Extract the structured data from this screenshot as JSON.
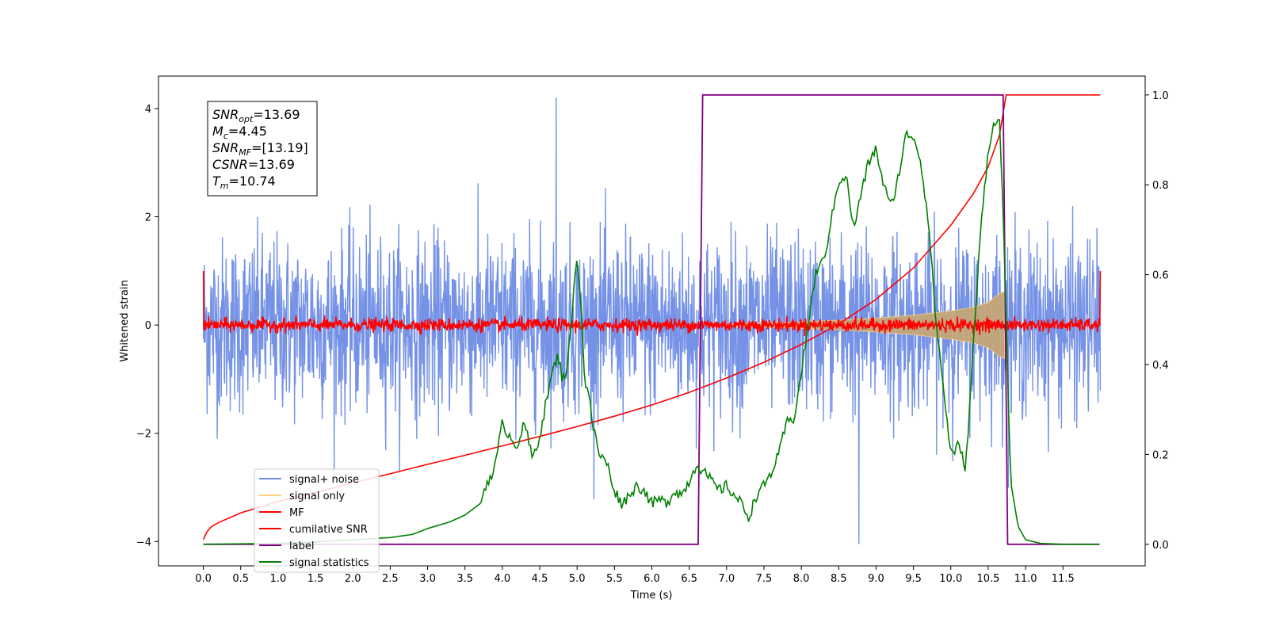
{
  "chart_data": {
    "type": "line",
    "xlabel": "Time (s)",
    "ylabel": "Whitened strain",
    "xlim": [
      -0.6,
      12.6
    ],
    "ylim": [
      -4.45,
      4.6
    ],
    "y2lim": [
      -0.048,
      1.042
    ],
    "x_ticks": [
      "0.0",
      "0.5",
      "1.0",
      "1.5",
      "2.0",
      "2.5",
      "3.0",
      "3.5",
      "4.0",
      "4.5",
      "5.0",
      "5.5",
      "6.0",
      "6.5",
      "7.0",
      "7.5",
      "8.0",
      "8.5",
      "9.0",
      "9.5",
      "10.0",
      "10.5",
      "11.0",
      "11.5"
    ],
    "y_ticks": [
      "−4",
      "−2",
      "0",
      "2",
      "4"
    ],
    "y2_ticks": [
      "0.0",
      "0.2",
      "0.4",
      "0.6",
      "0.8",
      "1.0"
    ],
    "annotation": [
      {
        "base": "SNR",
        "sub": "opt",
        "value": "=13.69"
      },
      {
        "base": "M",
        "sub": "c",
        "value": "=4.45"
      },
      {
        "base": "SNR",
        "sub": "MF",
        "value": "=[13.19]"
      },
      {
        "base": "CSNR",
        "sub": "",
        "value": "=13.69"
      },
      {
        "base": "T",
        "sub": "m",
        "value": "=10.74"
      }
    ],
    "legend": {
      "placement": "lower-left",
      "entries": [
        {
          "label": "signal+ noise",
          "color": "#6e8ce6"
        },
        {
          "label": "signal only",
          "color": "#ffd27f"
        },
        {
          "label": "MF",
          "color": "#ff0000"
        },
        {
          "label": "cumilative SNR",
          "color": "#ff0000"
        },
        {
          "label": "label",
          "color": "#800080"
        },
        {
          "label": "signal statistics",
          "color": "#008000"
        }
      ]
    },
    "series": [
      {
        "name": "signal+ noise",
        "axis": "left",
        "color": "#6e8ce6",
        "duration": 12.0,
        "std": 0.8,
        "spike_max": 4.2,
        "spike_min": -4.05
      },
      {
        "name": "signal only",
        "axis": "left",
        "color": "#ffd27f",
        "fill_color": "#c4a678",
        "envelope_x": [
          7.0,
          7.5,
          8.0,
          8.5,
          9.0,
          9.5,
          10.0,
          10.3,
          10.5,
          10.65,
          10.72
        ],
        "envelope_y": [
          0.02,
          0.04,
          0.06,
          0.09,
          0.13,
          0.18,
          0.26,
          0.33,
          0.42,
          0.58,
          0.62
        ]
      },
      {
        "name": "MF",
        "axis": "left",
        "color": "#ff0000",
        "std": 0.06,
        "edge_value": 1.0
      },
      {
        "name": "cumilative SNR",
        "axis": "right",
        "color": "#ff0000",
        "x": [
          0.0,
          0.02,
          0.05,
          0.1,
          0.2,
          0.5,
          1.0,
          1.5,
          2.0,
          2.5,
          3.0,
          3.5,
          4.0,
          4.5,
          5.0,
          5.5,
          6.0,
          6.5,
          7.0,
          7.5,
          8.0,
          8.5,
          9.0,
          9.5,
          10.0,
          10.3,
          10.5,
          10.65,
          10.74,
          12.0
        ],
        "y": [
          0.01,
          0.018,
          0.028,
          0.038,
          0.048,
          0.07,
          0.095,
          0.115,
          0.137,
          0.157,
          0.178,
          0.198,
          0.219,
          0.24,
          0.262,
          0.285,
          0.31,
          0.338,
          0.37,
          0.405,
          0.445,
          0.49,
          0.545,
          0.615,
          0.71,
          0.78,
          0.84,
          0.91,
          1.0,
          1.0
        ]
      },
      {
        "name": "label",
        "axis": "right",
        "color": "#800080",
        "x": [
          0.0,
          6.62,
          6.68,
          10.7,
          10.76,
          11.99
        ],
        "y": [
          0,
          0,
          1,
          1,
          0,
          0
        ]
      },
      {
        "name": "signal statistics",
        "axis": "right",
        "color": "#008000",
        "x": [
          0.0,
          0.5,
          1.0,
          1.5,
          2.0,
          2.5,
          2.8,
          3.0,
          3.3,
          3.5,
          3.7,
          3.8,
          3.9,
          4.0,
          4.1,
          4.2,
          4.3,
          4.4,
          4.5,
          4.6,
          4.7,
          4.75,
          4.8,
          4.85,
          4.9,
          4.95,
          5.0,
          5.05,
          5.1,
          5.15,
          5.2,
          5.3,
          5.4,
          5.5,
          5.6,
          5.7,
          5.8,
          5.9,
          6.0,
          6.1,
          6.2,
          6.3,
          6.4,
          6.5,
          6.6,
          6.7,
          6.8,
          6.9,
          7.0,
          7.1,
          7.2,
          7.3,
          7.4,
          7.5,
          7.6,
          7.7,
          7.8,
          7.9,
          8.0,
          8.1,
          8.2,
          8.3,
          8.4,
          8.5,
          8.6,
          8.7,
          8.8,
          8.9,
          9.0,
          9.1,
          9.2,
          9.3,
          9.4,
          9.5,
          9.6,
          9.7,
          9.8,
          9.9,
          10.0,
          10.1,
          10.2,
          10.3,
          10.4,
          10.5,
          10.6,
          10.65,
          10.7,
          10.75,
          10.8,
          10.9,
          11.0,
          11.2,
          11.5,
          11.99
        ],
        "y": [
          0.0,
          0.001,
          0.002,
          0.005,
          0.01,
          0.015,
          0.022,
          0.035,
          0.05,
          0.065,
          0.09,
          0.14,
          0.17,
          0.27,
          0.24,
          0.22,
          0.27,
          0.19,
          0.24,
          0.33,
          0.4,
          0.42,
          0.37,
          0.38,
          0.45,
          0.55,
          0.64,
          0.55,
          0.36,
          0.35,
          0.27,
          0.2,
          0.18,
          0.12,
          0.09,
          0.11,
          0.13,
          0.12,
          0.09,
          0.1,
          0.09,
          0.12,
          0.11,
          0.14,
          0.18,
          0.16,
          0.14,
          0.12,
          0.13,
          0.11,
          0.09,
          0.06,
          0.11,
          0.13,
          0.16,
          0.2,
          0.27,
          0.28,
          0.38,
          0.5,
          0.61,
          0.63,
          0.72,
          0.81,
          0.82,
          0.7,
          0.78,
          0.85,
          0.88,
          0.8,
          0.75,
          0.82,
          0.91,
          0.91,
          0.85,
          0.72,
          0.5,
          0.35,
          0.2,
          0.22,
          0.17,
          0.44,
          0.7,
          0.88,
          0.95,
          0.94,
          0.74,
          0.45,
          0.14,
          0.04,
          0.01,
          0.002,
          0.0,
          0.0
        ]
      }
    ]
  }
}
